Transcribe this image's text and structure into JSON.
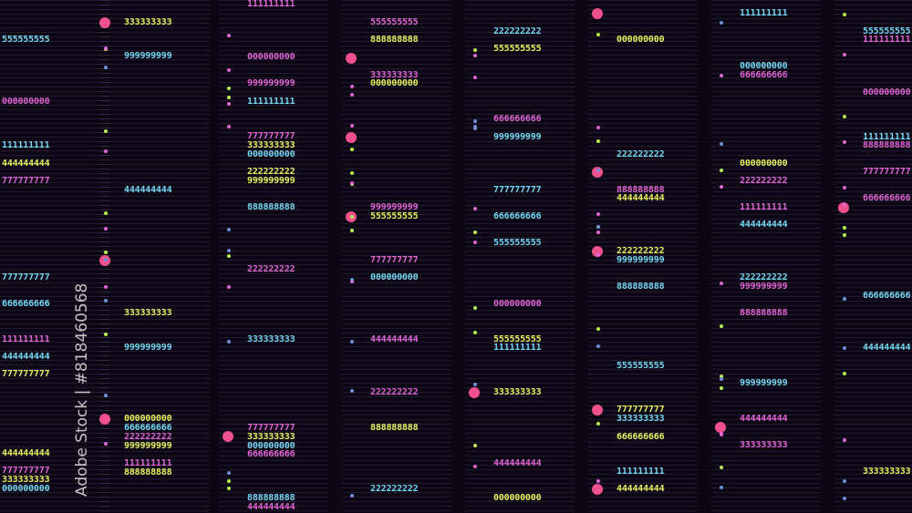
{
  "colors": {
    "background": "#0d0713",
    "cyan": "#74d8f2",
    "yellow": "#e6f062",
    "magenta": "#e064d4",
    "pink_dot": "#f0508c",
    "green_dot": "#b6f050",
    "blue_dot": "#6f8fd8"
  },
  "watermark": "Adobe Stock | #818460568",
  "labels": [
    {
      "text": "555555555",
      "color": "cyan"
    },
    {
      "text": "000000000",
      "color": "magenta"
    },
    {
      "text": "111111111",
      "color": "cyan"
    },
    {
      "text": "444444444",
      "color": "yellow"
    },
    {
      "text": "777777777",
      "color": "magenta"
    },
    {
      "text": "777777777",
      "color": "cyan"
    },
    {
      "text": "666666666",
      "color": "cyan"
    },
    {
      "text": "111111111",
      "color": "magenta"
    },
    {
      "text": "444444444",
      "color": "cyan"
    },
    {
      "text": "777777777",
      "color": "yellow"
    },
    {
      "text": "444444444",
      "color": "yellow"
    },
    {
      "text": "777777777",
      "color": "magenta"
    },
    {
      "text": "333333333",
      "color": "yellow"
    },
    {
      "text": "000000000",
      "color": "cyan"
    },
    {
      "text": "333333333",
      "color": "yellow"
    },
    {
      "text": "999999999",
      "color": "cyan"
    },
    {
      "text": "444444444",
      "color": "cyan"
    },
    {
      "text": "333333333",
      "color": "yellow"
    },
    {
      "text": "999999999",
      "color": "cyan"
    },
    {
      "text": "000000000",
      "color": "yellow"
    },
    {
      "text": "666666666",
      "color": "cyan"
    },
    {
      "text": "222222222",
      "color": "magenta"
    },
    {
      "text": "999999999",
      "color": "yellow"
    },
    {
      "text": "111111111",
      "color": "magenta"
    },
    {
      "text": "888888888",
      "color": "yellow"
    },
    {
      "text": "111111111",
      "color": "magenta"
    },
    {
      "text": "000000000",
      "color": "magenta"
    },
    {
      "text": "999999999",
      "color": "magenta"
    },
    {
      "text": "111111111",
      "color": "cyan"
    },
    {
      "text": "777777777",
      "color": "magenta"
    },
    {
      "text": "333333333",
      "color": "yellow"
    },
    {
      "text": "000000000",
      "color": "cyan"
    },
    {
      "text": "222222222",
      "color": "yellow"
    },
    {
      "text": "999999999",
      "color": "yellow"
    },
    {
      "text": "888888888",
      "color": "cyan"
    },
    {
      "text": "222222222",
      "color": "magenta"
    },
    {
      "text": "333333333",
      "color": "cyan"
    },
    {
      "text": "777777777",
      "color": "magenta"
    },
    {
      "text": "333333333",
      "color": "yellow"
    },
    {
      "text": "000000000",
      "color": "cyan"
    },
    {
      "text": "666666666",
      "color": "magenta"
    },
    {
      "text": "888888888",
      "color": "cyan"
    },
    {
      "text": "444444444",
      "color": "magenta"
    },
    {
      "text": "555555555",
      "color": "magenta"
    },
    {
      "text": "888888888",
      "color": "yellow"
    },
    {
      "text": "333333333",
      "color": "magenta"
    },
    {
      "text": "000000000",
      "color": "yellow"
    },
    {
      "text": "999999999",
      "color": "magenta"
    },
    {
      "text": "555555555",
      "color": "yellow"
    },
    {
      "text": "777777777",
      "color": "magenta"
    },
    {
      "text": "000000000",
      "color": "cyan"
    },
    {
      "text": "444444444",
      "color": "magenta"
    },
    {
      "text": "222222222",
      "color": "magenta"
    },
    {
      "text": "888888888",
      "color": "yellow"
    },
    {
      "text": "222222222",
      "color": "cyan"
    },
    {
      "text": "222222222",
      "color": "cyan"
    },
    {
      "text": "555555555",
      "color": "yellow"
    },
    {
      "text": "666666666",
      "color": "magenta"
    },
    {
      "text": "999999999",
      "color": "cyan"
    },
    {
      "text": "777777777",
      "color": "cyan"
    },
    {
      "text": "666666666",
      "color": "cyan"
    },
    {
      "text": "555555555",
      "color": "cyan"
    },
    {
      "text": "000000000",
      "color": "magenta"
    },
    {
      "text": "555555555",
      "color": "yellow"
    },
    {
      "text": "111111111",
      "color": "cyan"
    },
    {
      "text": "333333333",
      "color": "yellow"
    },
    {
      "text": "444444444",
      "color": "magenta"
    },
    {
      "text": "000000000",
      "color": "yellow"
    },
    {
      "text": "000000000",
      "color": "yellow"
    },
    {
      "text": "222222222",
      "color": "cyan"
    },
    {
      "text": "888888888",
      "color": "magenta"
    },
    {
      "text": "444444444",
      "color": "yellow"
    },
    {
      "text": "222222222",
      "color": "yellow"
    },
    {
      "text": "999999999",
      "color": "cyan"
    },
    {
      "text": "888888888",
      "color": "cyan"
    },
    {
      "text": "555555555",
      "color": "cyan"
    },
    {
      "text": "777777777",
      "color": "yellow"
    },
    {
      "text": "333333333",
      "color": "cyan"
    },
    {
      "text": "666666666",
      "color": "yellow"
    },
    {
      "text": "111111111",
      "color": "cyan"
    },
    {
      "text": "444444444",
      "color": "yellow"
    },
    {
      "text": "111111111",
      "color": "cyan"
    },
    {
      "text": "000000000",
      "color": "cyan"
    },
    {
      "text": "666666666",
      "color": "magenta"
    },
    {
      "text": "000000000",
      "color": "yellow"
    },
    {
      "text": "222222222",
      "color": "magenta"
    },
    {
      "text": "111111111",
      "color": "magenta"
    },
    {
      "text": "444444444",
      "color": "cyan"
    },
    {
      "text": "222222222",
      "color": "cyan"
    },
    {
      "text": "999999999",
      "color": "magenta"
    },
    {
      "text": "888888888",
      "color": "magenta"
    },
    {
      "text": "999999999",
      "color": "cyan"
    },
    {
      "text": "444444444",
      "color": "magenta"
    },
    {
      "text": "333333333",
      "color": "magenta"
    },
    {
      "text": "555555555",
      "color": "cyan"
    },
    {
      "text": "111111111",
      "color": "magenta"
    },
    {
      "text": "000000000",
      "color": "magenta"
    },
    {
      "text": "111111111",
      "color": "cyan"
    },
    {
      "text": "888888888",
      "color": "magenta"
    },
    {
      "text": "777777777",
      "color": "magenta"
    },
    {
      "text": "666666666",
      "color": "magenta"
    },
    {
      "text": "666666666",
      "color": "cyan"
    },
    {
      "text": "444444444",
      "color": "cyan"
    },
    {
      "text": "333333333",
      "color": "yellow"
    }
  ]
}
